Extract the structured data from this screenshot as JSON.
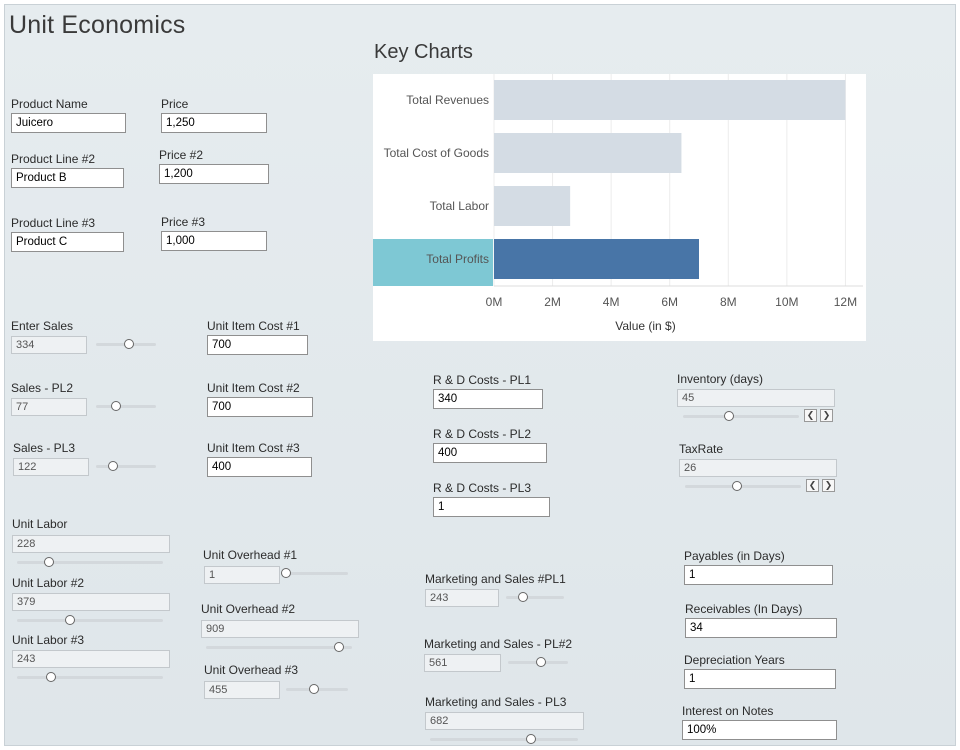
{
  "header": {
    "title": "Unit Economics",
    "chart_title": "Key Charts"
  },
  "colors": {
    "bar": "#d4dce4",
    "bar_highlight": "#4875a7",
    "label_highlight": "#7ec8d4"
  },
  "products": {
    "product_name_label": "Product Name",
    "product_name": "Juicero",
    "price_label": "Price",
    "price": "1,250",
    "line2_label": "Product Line #2",
    "line2": "Product B",
    "price2_label": "Price #2",
    "price2": "1,200",
    "line3_label": "Product Line #3",
    "line3": "Product C",
    "price3_label": "Price #3",
    "price3": "1,000"
  },
  "sales": {
    "enter_sales_label": "Enter Sales",
    "enter_sales": "334",
    "enter_sales_level": 0.55,
    "pl2_label": "Sales - PL2",
    "pl2": "77",
    "pl2_level": 0.33,
    "pl3_label": "Sales - PL3",
    "pl3": "122",
    "pl3_level": 0.28
  },
  "item_costs": {
    "c1_label": "Unit Item Cost #1",
    "c1": "700",
    "c2_label": "Unit Item Cost #2",
    "c2": "700",
    "c3_label": "Unit Item Cost #3",
    "c3": "400"
  },
  "labor": {
    "l1_label": "Unit Labor",
    "l1": "228",
    "l1_level": 0.22,
    "l2_label": "Unit Labor #2",
    "l2": "379",
    "l2_level": 0.36,
    "l3_label": "Unit Labor #3",
    "l3": "243",
    "l3_level": 0.23
  },
  "overhead": {
    "o1_label": "Unit Overhead #1",
    "o1": "1",
    "o1_level": 0.0,
    "o2_label": "Unit Overhead #2",
    "o2": "909",
    "o2_level": 0.91,
    "o3_label": "Unit Overhead #3",
    "o3": "455",
    "o3_level": 0.45
  },
  "rnd": {
    "pl1_label": "R & D Costs - PL1",
    "pl1": "340",
    "pl2_label": "R & D Costs - PL2",
    "pl2": "400",
    "pl3_label": "R & D Costs - PL3",
    "pl3": "1"
  },
  "marketing": {
    "pl1_label": "Marketing and Sales #PL1",
    "pl1": "243",
    "pl1_level": 0.3,
    "pl2_label": "Marketing and Sales - PL#2",
    "pl2": "561",
    "pl2_level": 0.55,
    "pl3_label": "Marketing and Sales - PL3",
    "pl3": "682",
    "pl3_level": 0.68
  },
  "finance": {
    "inventory_label": "Inventory (days)",
    "inventory": "45",
    "inventory_level": 0.4,
    "taxrate_label": "TaxRate",
    "taxrate": "26",
    "taxrate_level": 0.45,
    "payables_label": "Payables (in Days)",
    "payables": "1",
    "receivables_label": "Receivables (In Days)",
    "receivables": "34",
    "depreciation_label": "Depreciation Years",
    "depreciation": "1",
    "interest_label": "Interest on Notes",
    "interest": "100%"
  },
  "chart_data": {
    "type": "bar",
    "orientation": "horizontal",
    "categories": [
      "Total Revenues",
      "Total Cost of Goods",
      "Total Labor",
      "Total Profits"
    ],
    "values": [
      12.0,
      6.4,
      2.6,
      7.0
    ],
    "value_unit": "M",
    "highlighted": "Total Profits",
    "xlabel": "Value (in $)",
    "xticks": [
      "0M",
      "2M",
      "4M",
      "6M",
      "8M",
      "10M",
      "12M"
    ],
    "xlim": [
      0,
      12.6
    ],
    "grid": true
  }
}
